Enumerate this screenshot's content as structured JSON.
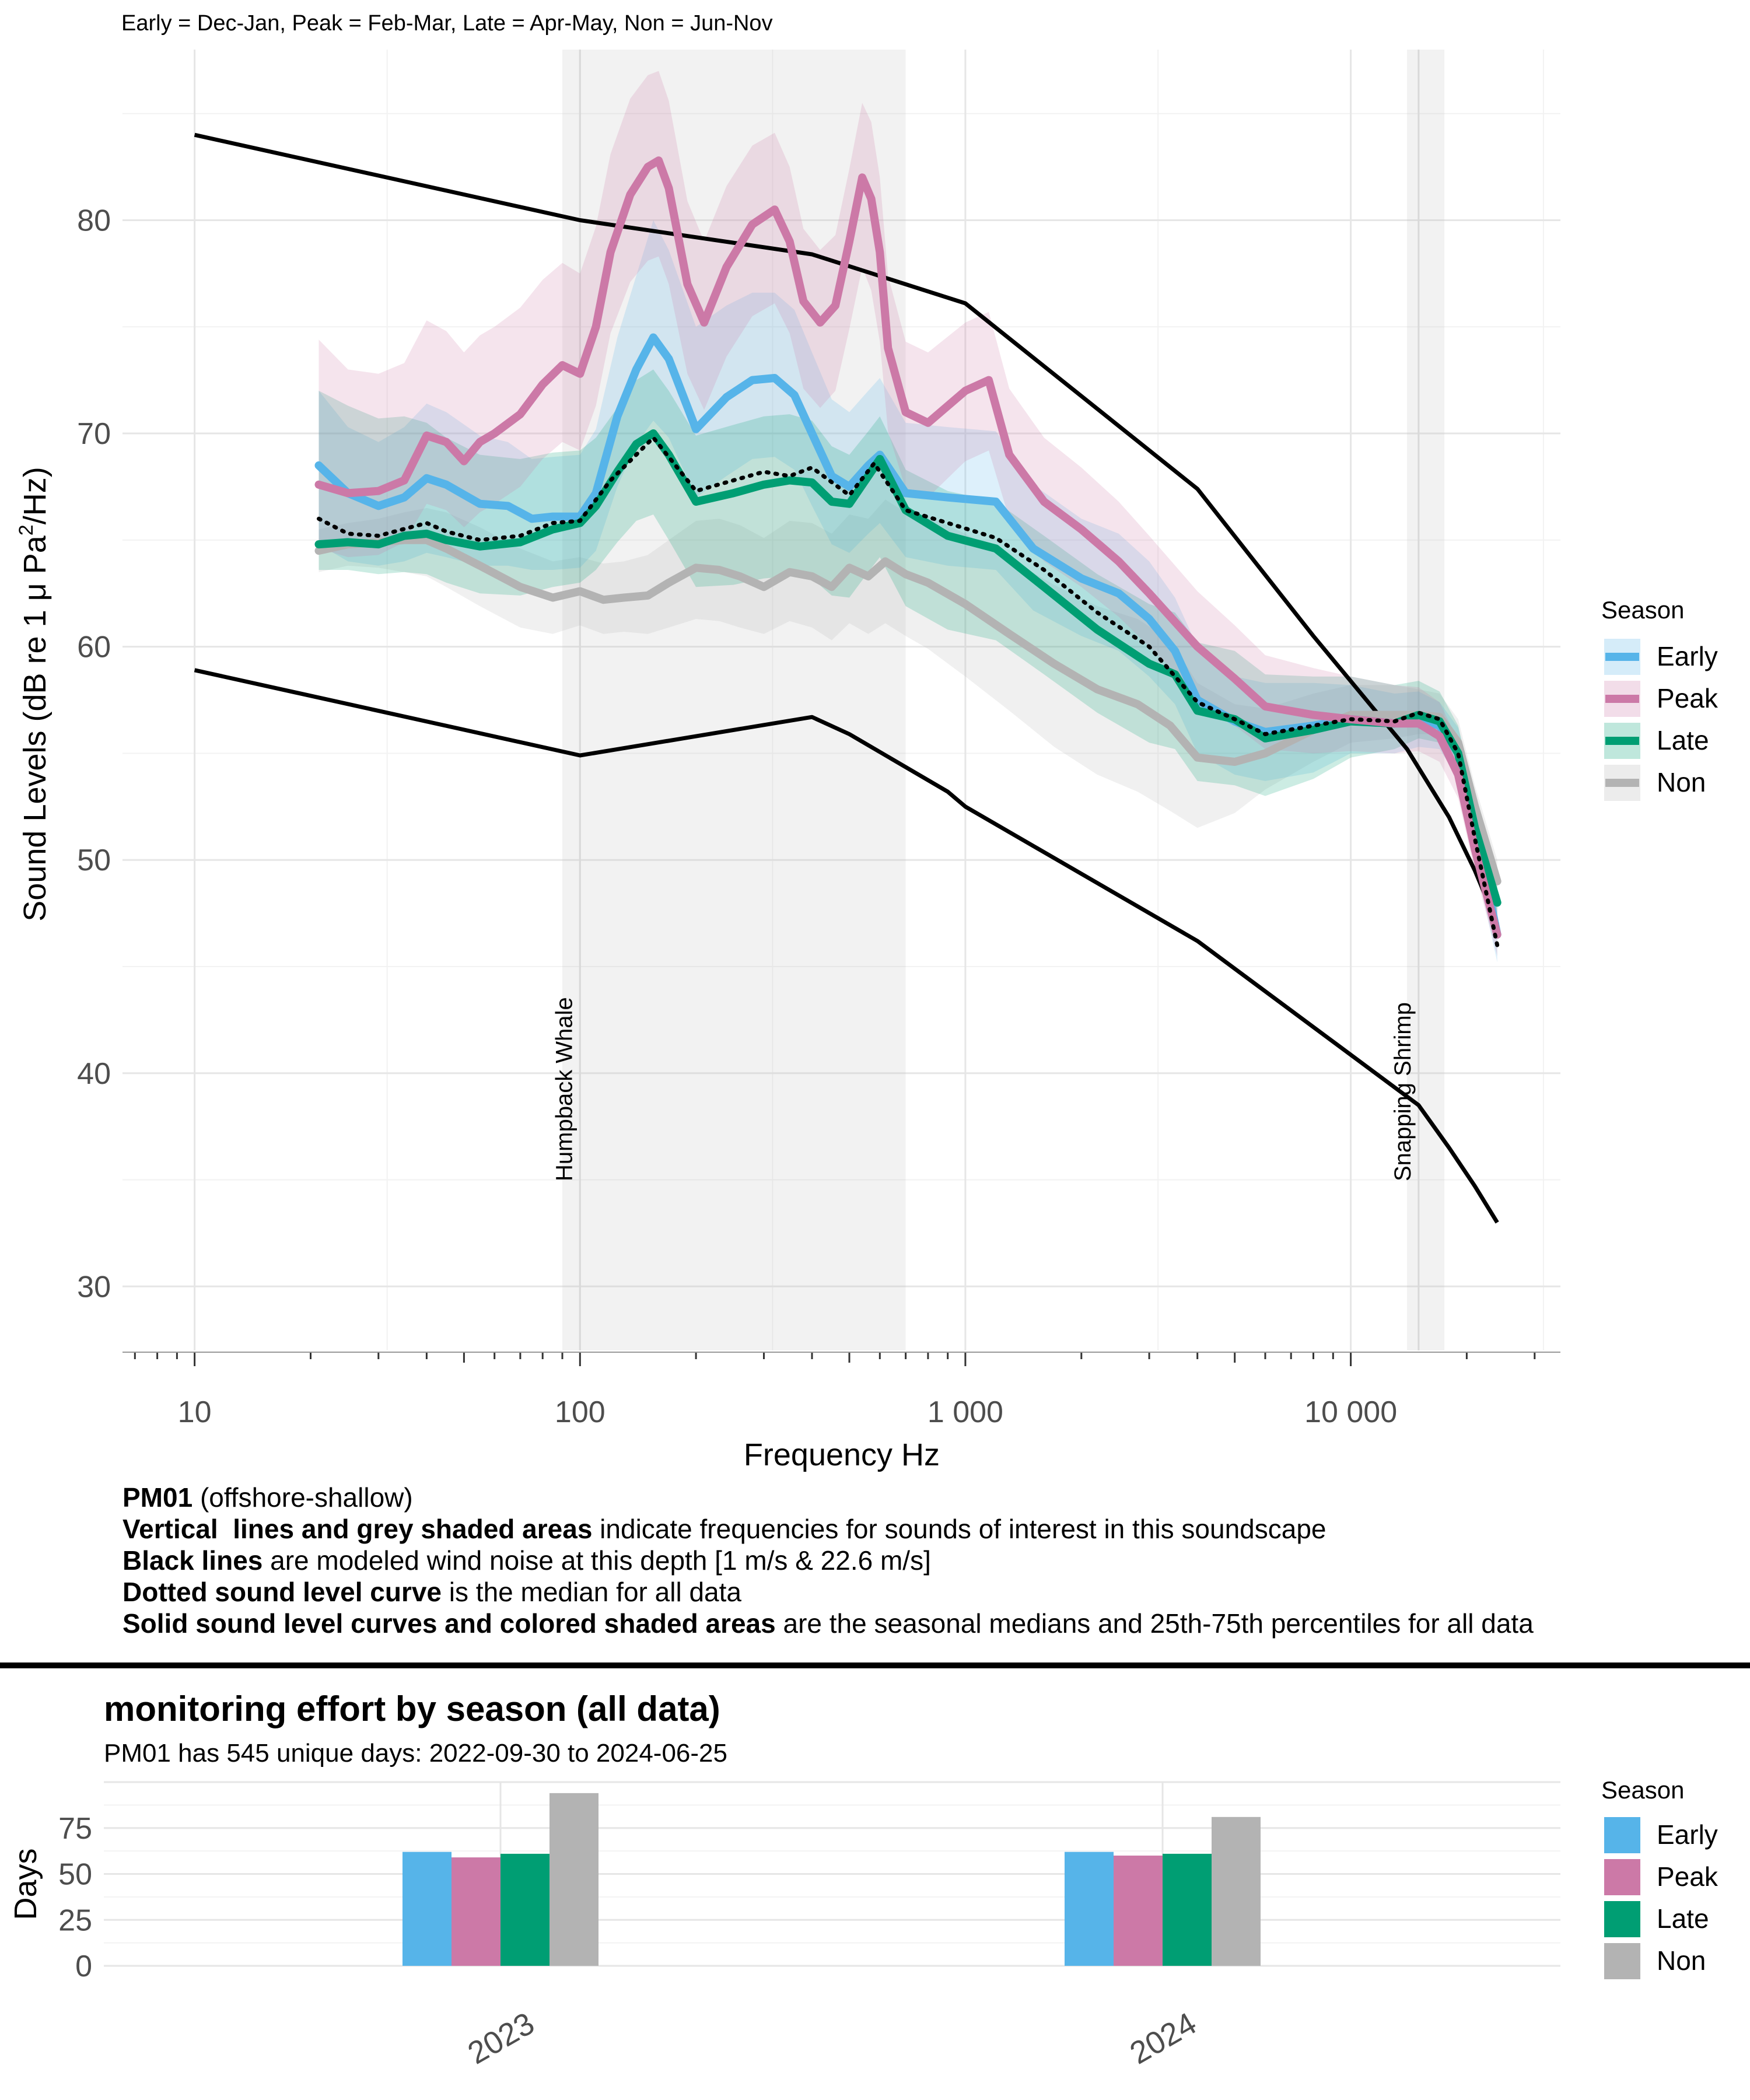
{
  "chart_data": [
    {
      "type": "line",
      "subtitle": "Early = Dec-Jan, Peak = Feb-Mar, Late = Apr-May, Non = Jun-Nov",
      "xlabel": "Frequency Hz",
      "ylabel_main": "Sound Levels (dB re 1 μ Pa",
      "ylabel_sup": "2",
      "ylabel_tail": "/Hz)",
      "xscale": "log",
      "xlim": [
        6.5,
        35000
      ],
      "ylim": [
        27,
        88
      ],
      "x_ticks": [
        10,
        100,
        1000,
        10000
      ],
      "x_tick_labels": [
        "10",
        "100",
        "1 000",
        "10 000"
      ],
      "y_ticks": [
        30,
        40,
        50,
        60,
        70,
        80
      ],
      "y_tick_labels": [
        "30",
        "40",
        "50",
        "60",
        "70",
        "80"
      ],
      "grid": true,
      "legend": {
        "title": "Season",
        "position": "right",
        "entries": [
          "Early",
          "Peak",
          "Late",
          "Non"
        ]
      },
      "bands": [
        {
          "label": "Humpback Whale",
          "x_range": [
            90,
            700
          ],
          "label_x": 100
        },
        {
          "label": "Snapping Shrimp",
          "x_range": [
            14000,
            17500
          ],
          "label_x": 15000
        }
      ],
      "wind_noise": [
        {
          "name": "1 m/s",
          "x": [
            10,
            100,
            400,
            500,
            900,
            1000,
            4000,
            15000,
            18000,
            21000,
            24000
          ],
          "y": [
            58.9,
            54.9,
            56.7,
            55.9,
            53.2,
            52.5,
            46.2,
            38.5,
            36.5,
            34.7,
            33.0
          ]
        },
        {
          "name": "22.6 m/s",
          "x": [
            10,
            100,
            400,
            1000,
            4000,
            8000,
            14000,
            18000,
            21000,
            24000
          ],
          "y": [
            84.0,
            80.0,
            78.4,
            76.1,
            67.4,
            60.5,
            55.2,
            52.0,
            49.5,
            47.0
          ]
        }
      ],
      "median_all": {
        "x": [
          21,
          25,
          30,
          40,
          45,
          55,
          70,
          85,
          100,
          120,
          155,
          200,
          250,
          300,
          350,
          400,
          500,
          580,
          700,
          900,
          1200,
          1600,
          2200,
          3000,
          4000,
          5000,
          6000,
          8000,
          10000,
          13000,
          15000,
          17000,
          19000,
          21000,
          24000
        ],
        "y": [
          66.0,
          65.3,
          65.2,
          65.8,
          65.4,
          65.0,
          65.2,
          65.8,
          65.9,
          67.8,
          69.8,
          67.3,
          67.8,
          68.2,
          68.0,
          68.4,
          67.1,
          68.6,
          66.4,
          65.8,
          65.1,
          63.6,
          61.6,
          60.0,
          57.4,
          56.6,
          55.9,
          56.3,
          56.6,
          56.5,
          56.9,
          56.6,
          55.0,
          51.0,
          46.0
        ]
      },
      "series": [
        {
          "name": "Early",
          "color": "#56B4E9",
          "x": [
            21,
            25,
            30,
            35,
            40,
            45,
            55,
            65,
            75,
            85,
            100,
            110,
            125,
            140,
            155,
            170,
            200,
            240,
            280,
            320,
            360,
            400,
            450,
            500,
            560,
            600,
            700,
            900,
            1200,
            1500,
            2000,
            2500,
            3000,
            3500,
            4000,
            5000,
            6000,
            8000,
            10000,
            13000,
            15000,
            17000,
            19000,
            21000,
            24000
          ],
          "y": [
            68.5,
            67.2,
            66.6,
            67.0,
            67.9,
            67.6,
            66.7,
            66.6,
            66.0,
            66.1,
            66.1,
            67.2,
            70.8,
            73.0,
            74.5,
            73.5,
            70.2,
            71.7,
            72.5,
            72.6,
            71.8,
            70.0,
            68.0,
            67.5,
            68.5,
            69.0,
            67.2,
            67.0,
            66.8,
            64.6,
            63.2,
            62.5,
            61.3,
            59.8,
            57.5,
            56.5,
            56.0,
            56.3,
            56.6,
            56.4,
            56.6,
            56.3,
            55.0,
            51.5,
            46.5
          ],
          "lower": [
            64.8,
            64.0,
            63.8,
            64.0,
            64.4,
            64.2,
            63.8,
            63.8,
            63.6,
            63.6,
            63.7,
            64.5,
            67.5,
            69.5,
            70.6,
            69.8,
            67.0,
            68.0,
            68.8,
            68.9,
            68.3,
            66.6,
            64.8,
            64.4,
            65.3,
            65.8,
            64.2,
            63.8,
            63.6,
            61.7,
            60.5,
            59.8,
            58.6,
            57.3,
            55.0,
            54.0,
            53.7,
            54.1,
            55.0,
            55.0,
            55.3,
            55.2,
            53.8,
            50.0,
            45.2
          ],
          "upper": [
            72.0,
            70.3,
            69.6,
            70.3,
            71.4,
            71.0,
            69.9,
            69.6,
            68.8,
            68.9,
            69.0,
            70.2,
            74.5,
            77.4,
            80.0,
            78.6,
            75.0,
            76.0,
            76.6,
            76.6,
            75.8,
            73.8,
            71.6,
            71.0,
            72.0,
            72.6,
            70.5,
            70.3,
            70.1,
            67.6,
            66.0,
            65.3,
            64.0,
            62.3,
            60.0,
            58.6,
            58.3,
            58.3,
            58.2,
            57.8,
            57.9,
            57.4,
            56.2,
            53.0,
            48.0
          ]
        },
        {
          "name": "Peak",
          "color": "#CC79A7",
          "x": [
            21,
            25,
            30,
            35,
            40,
            45,
            50,
            55,
            60,
            70,
            80,
            90,
            100,
            110,
            120,
            135,
            150,
            160,
            170,
            190,
            210,
            240,
            280,
            320,
            350,
            380,
            420,
            460,
            500,
            540,
            570,
            600,
            630,
            700,
            800,
            1000,
            1150,
            1300,
            1600,
            2000,
            2500,
            3000,
            4000,
            5000,
            6000,
            8000,
            10000,
            13000,
            15000,
            17000,
            19000,
            21000,
            24000
          ],
          "y": [
            67.6,
            67.2,
            67.3,
            67.8,
            69.9,
            69.6,
            68.7,
            69.6,
            70.0,
            70.9,
            72.3,
            73.2,
            72.8,
            75.0,
            78.5,
            81.2,
            82.5,
            82.8,
            81.5,
            77.0,
            75.2,
            77.8,
            79.8,
            80.5,
            79.0,
            76.2,
            75.2,
            76.0,
            79.0,
            82.0,
            81.0,
            78.5,
            74.0,
            71.0,
            70.5,
            72.0,
            72.5,
            69.0,
            66.8,
            65.5,
            64.0,
            62.5,
            60.0,
            58.5,
            57.2,
            56.8,
            56.6,
            56.4,
            56.4,
            55.8,
            54.0,
            50.5,
            46.5
          ],
          "lower": [
            64.6,
            64.2,
            64.3,
            64.9,
            66.7,
            66.4,
            65.6,
            66.3,
            66.7,
            67.5,
            68.8,
            69.6,
            69.2,
            71.3,
            74.7,
            77.1,
            78.1,
            78.3,
            77.0,
            72.8,
            71.1,
            73.6,
            75.5,
            76.1,
            74.7,
            72.1,
            71.2,
            72.0,
            74.9,
            77.8,
            76.7,
            74.3,
            70.1,
            67.4,
            67.0,
            68.7,
            69.2,
            66.0,
            64.0,
            62.8,
            61.4,
            60.0,
            57.7,
            56.3,
            55.2,
            55.0,
            55.1,
            55.0,
            55.1,
            54.6,
            52.9,
            49.5,
            45.5
          ],
          "upper": [
            74.4,
            73.0,
            72.8,
            73.3,
            75.3,
            74.8,
            73.8,
            74.6,
            75.0,
            75.9,
            77.2,
            78.0,
            77.5,
            79.7,
            83.1,
            85.7,
            86.8,
            87.0,
            85.6,
            80.9,
            79.0,
            81.6,
            83.5,
            84.1,
            82.5,
            79.6,
            78.6,
            79.3,
            82.4,
            85.5,
            84.6,
            82.0,
            77.4,
            74.3,
            73.8,
            75.2,
            75.7,
            72.1,
            69.8,
            68.4,
            66.8,
            65.2,
            62.6,
            61.0,
            59.6,
            59.0,
            58.6,
            58.2,
            58.1,
            57.4,
            55.6,
            52.0,
            48.0
          ]
        },
        {
          "name": "Late",
          "color": "#009E73",
          "x": [
            21,
            25,
            30,
            35,
            40,
            45,
            55,
            70,
            85,
            100,
            110,
            125,
            140,
            155,
            170,
            200,
            250,
            300,
            350,
            400,
            450,
            500,
            560,
            600,
            700,
            900,
            1200,
            1600,
            2200,
            3000,
            3500,
            4000,
            5000,
            6000,
            8000,
            10000,
            13000,
            15000,
            17000,
            19000,
            21000,
            24000
          ],
          "y": [
            64.8,
            64.9,
            64.8,
            65.2,
            65.3,
            65.0,
            64.7,
            64.9,
            65.5,
            65.8,
            66.6,
            68.2,
            69.5,
            70.0,
            69.0,
            66.8,
            67.2,
            67.6,
            67.8,
            67.7,
            66.8,
            66.7,
            68.0,
            68.8,
            66.4,
            65.2,
            64.6,
            62.8,
            60.8,
            59.2,
            58.7,
            57.0,
            56.6,
            55.7,
            56.1,
            56.5,
            56.4,
            56.8,
            56.5,
            55.0,
            51.5,
            48.0
          ],
          "lower": [
            63.6,
            63.6,
            63.4,
            63.5,
            63.4,
            63.0,
            62.5,
            62.4,
            62.8,
            63.0,
            63.6,
            64.9,
            65.9,
            66.2,
            65.0,
            62.8,
            62.9,
            63.2,
            63.3,
            63.2,
            62.4,
            62.3,
            63.5,
            64.2,
            61.9,
            60.8,
            60.3,
            58.7,
            56.9,
            55.5,
            55.2,
            53.7,
            53.5,
            53.0,
            53.8,
            54.8,
            55.2,
            55.7,
            55.5,
            54.0,
            50.6,
            47.2
          ],
          "upper": [
            72.0,
            71.3,
            70.7,
            70.8,
            70.5,
            69.8,
            69.0,
            68.8,
            69.1,
            69.2,
            69.8,
            71.2,
            72.5,
            73.0,
            72.0,
            69.9,
            70.4,
            70.8,
            70.9,
            70.6,
            69.4,
            69.0,
            70.1,
            70.8,
            68.3,
            67.3,
            66.8,
            65.2,
            63.4,
            62.0,
            61.6,
            60.2,
            59.8,
            58.7,
            58.6,
            58.6,
            58.2,
            58.4,
            57.9,
            56.3,
            53.0,
            49.5
          ]
        },
        {
          "name": "Non",
          "color": "#B3B3B3",
          "x": [
            21,
            25,
            30,
            35,
            40,
            45,
            55,
            70,
            85,
            100,
            115,
            130,
            150,
            170,
            200,
            230,
            260,
            300,
            350,
            400,
            450,
            500,
            560,
            620,
            700,
            800,
            1000,
            1300,
            1700,
            2200,
            2800,
            3400,
            4000,
            5000,
            6000,
            8000,
            10000,
            13000,
            15000,
            17000,
            19000,
            21000,
            24000
          ],
          "y": [
            64.5,
            64.8,
            64.9,
            65.0,
            65.0,
            64.6,
            63.8,
            62.8,
            62.3,
            62.6,
            62.2,
            62.3,
            62.4,
            63.0,
            63.7,
            63.6,
            63.3,
            62.8,
            63.5,
            63.3,
            62.8,
            63.7,
            63.3,
            64.0,
            63.4,
            63.0,
            62.0,
            60.6,
            59.2,
            58.0,
            57.3,
            56.3,
            54.8,
            54.6,
            55.0,
            56.1,
            56.8,
            56.8,
            56.8,
            56.7,
            55.5,
            52.5,
            49.0
          ],
          "lower": [
            63.5,
            63.8,
            63.7,
            63.5,
            63.3,
            62.8,
            61.9,
            60.9,
            60.6,
            61.0,
            60.6,
            60.7,
            60.6,
            60.9,
            61.3,
            61.2,
            60.9,
            60.6,
            61.2,
            60.9,
            60.3,
            61.1,
            60.6,
            61.1,
            60.5,
            59.9,
            58.6,
            57.0,
            55.3,
            54.0,
            53.2,
            52.3,
            51.5,
            52.2,
            53.3,
            54.6,
            55.5,
            55.7,
            55.9,
            55.9,
            54.7,
            51.8,
            48.3
          ],
          "upper": [
            65.5,
            65.8,
            66.0,
            66.3,
            66.5,
            66.3,
            65.6,
            64.6,
            64.0,
            64.2,
            63.9,
            64.0,
            64.3,
            65.0,
            65.9,
            66.0,
            65.7,
            65.1,
            65.9,
            65.8,
            65.3,
            66.2,
            66.0,
            66.9,
            66.3,
            66.1,
            65.3,
            64.1,
            62.9,
            61.9,
            61.3,
            60.3,
            58.3,
            57.3,
            57.1,
            57.8,
            58.2,
            58.2,
            58.0,
            57.8,
            56.6,
            53.5,
            50.0
          ]
        }
      ]
    },
    {
      "type": "bar",
      "title": "monitoring effort by season (all data)",
      "subtitle": "PM01 has 545 unique days: 2022-09-30 to 2024-06-25",
      "ylabel": "Days",
      "ylim": [
        0,
        100
      ],
      "y_ticks": [
        0,
        25,
        50,
        75
      ],
      "y_tick_labels": [
        "0",
        "25",
        "50",
        "75"
      ],
      "categories": [
        "2023",
        "2024"
      ],
      "grid": true,
      "legend": {
        "title": "Season",
        "position": "right",
        "entries": [
          "Early",
          "Peak",
          "Late",
          "Non"
        ]
      },
      "series": [
        {
          "name": "Early",
          "color": "#56B4E9",
          "values": [
            62,
            62
          ]
        },
        {
          "name": "Peak",
          "color": "#CC79A7",
          "values": [
            59,
            60
          ]
        },
        {
          "name": "Late",
          "color": "#009E73",
          "values": [
            61,
            61
          ]
        },
        {
          "name": "Non",
          "color": "#B3B3B3",
          "values": [
            94,
            81
          ]
        }
      ]
    }
  ],
  "notes": {
    "line1_bold": "PM01",
    "line1_rest": " (offshore-shallow)",
    "line2_bold": "Vertical  lines and grey shaded areas",
    "line2_rest": " indicate frequencies for sounds of interest in this soundscape",
    "line3_bold": "Black lines",
    "line3_rest": " are modeled wind noise at this depth [1 m/s & 22.6 m/s]",
    "line4_bold": "Dotted sound level curve",
    "line4_rest": " is the median for all data",
    "line5_bold": "Solid sound level curves and colored shaded areas",
    "line5_rest": " are the seasonal medians and 25th-75th percentiles for all data"
  }
}
